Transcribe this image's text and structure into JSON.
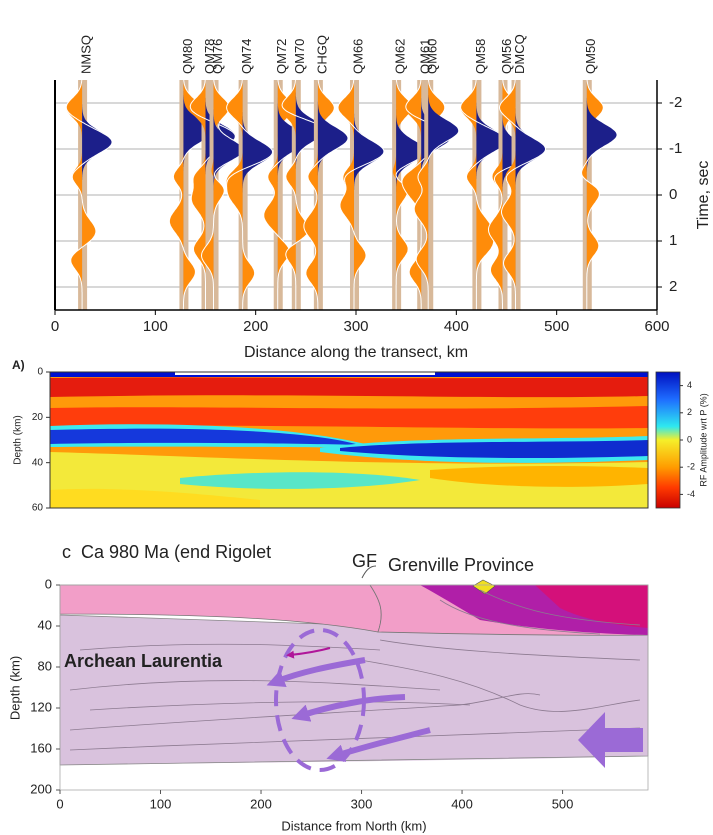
{
  "chart_data": [
    {
      "type": "wiggle",
      "stations": [
        "NMSQ",
        "QM80",
        "QM78",
        "QM76",
        "QM74",
        "QM72",
        "QM70",
        "CHGQ",
        "QM66",
        "QM62",
        "QM61",
        "QM60",
        "QM58",
        "QM56",
        "DMCQ",
        "QM50"
      ],
      "distances": [
        27,
        128,
        150,
        158,
        187,
        222,
        240,
        262,
        298,
        340,
        365,
        372,
        420,
        446,
        459,
        530
      ],
      "xlabel": "Distance along the transect, km",
      "ylabel": "Time, sec",
      "xlim": [
        0,
        600
      ],
      "xticks": [
        0,
        100,
        200,
        300,
        400,
        500,
        600
      ],
      "ylim": [
        -2.5,
        2.5
      ],
      "yticks": [
        -2,
        -1,
        0,
        1,
        2
      ],
      "y_inverted": true,
      "grid": true
    },
    {
      "type": "heatmap",
      "panel_label": "A)",
      "ylabel": "Depth (km)",
      "ylim": [
        0,
        60
      ],
      "yticks": [
        0,
        20,
        40,
        60
      ],
      "y_inverted": true,
      "colorbar_label": "RF Amplitude wrt P (%)",
      "clim": [
        -5,
        5
      ],
      "cticks": [
        4,
        2,
        0,
        -2,
        -4
      ]
    },
    {
      "type": "cross-section",
      "title": "c  Ca 980 Ma (end Rigolet",
      "annotations": [
        "GF",
        "Grenville Province",
        "Archean Laurentia"
      ],
      "xlabel": "Distance from North (km)",
      "ylabel": "Depth (km)",
      "xlim": [
        0,
        585
      ],
      "xticks": [
        0,
        100,
        200,
        300,
        400,
        500
      ],
      "ylim": [
        0,
        200
      ],
      "yticks": [
        0,
        40,
        80,
        120,
        160,
        200
      ],
      "y_inverted": true
    }
  ]
}
